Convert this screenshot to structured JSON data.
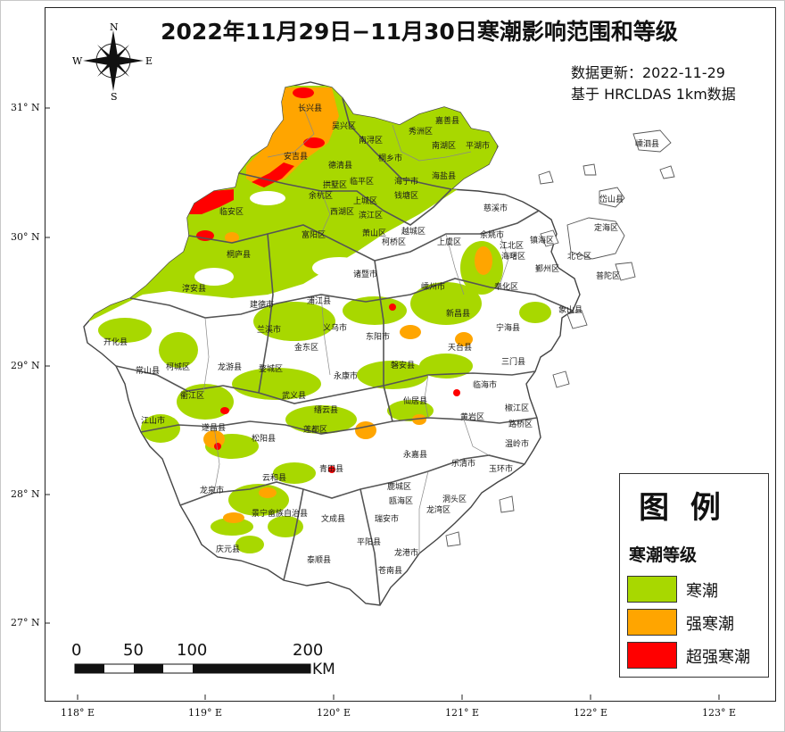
{
  "title": "2022年11月29日−11月30日寒潮影响范围和等级",
  "meta": {
    "update_label": "数据更新：2022-11-29",
    "source_label": "基于 HRCLDAS 1km数据"
  },
  "compass": {
    "n": "N",
    "s": "S",
    "e": "E",
    "w": "W"
  },
  "legend": {
    "title": "图 例",
    "subtitle": "寒潮等级",
    "items": [
      {
        "label": "寒潮",
        "color": "#a8d800"
      },
      {
        "label": "强寒潮",
        "color": "#ffa500"
      },
      {
        "label": "超强寒潮",
        "color": "#ff0000"
      }
    ]
  },
  "axes": {
    "lat_labels": [
      "31° N",
      "30° N",
      "29° N",
      "28° N",
      "27° N"
    ],
    "lon_labels": [
      "118° E",
      "119° E",
      "120° E",
      "121° E",
      "122° E",
      "123° E"
    ]
  },
  "scale_bar": {
    "ticks": [
      "0",
      "50",
      "100",
      "200"
    ],
    "unit": "KM"
  },
  "places": [
    "长兴县",
    "吴兴区",
    "南浔区",
    "秀洲区",
    "嘉善县",
    "南湖区",
    "平湖市",
    "桐乡市",
    "海盐县",
    "安吉县",
    "德清县",
    "临平区",
    "拱墅区",
    "海宁市",
    "余杭区",
    "上城区",
    "钱塘区",
    "西湖区",
    "滨江区",
    "临安区",
    "萧山区",
    "柯桥区",
    "越城区",
    "上虞区",
    "慈溪市",
    "余姚市",
    "江北区",
    "镇海区",
    "海曙区",
    "北仑区",
    "鄞州区",
    "定海区",
    "普陀区",
    "嵊泗县",
    "岱山县",
    "富阳区",
    "桐庐县",
    "诸暨市",
    "嵊州市",
    "奉化区",
    "淳安县",
    "建德市",
    "浦江县",
    "新昌县",
    "宁海县",
    "象山县",
    "开化县",
    "兰溪市",
    "义乌市",
    "东阳市",
    "天台县",
    "三门县",
    "常山县",
    "柯城区",
    "龙游县",
    "婺城区",
    "金东区",
    "永康市",
    "磐安县",
    "临海市",
    "衢江区",
    "武义县",
    "仙居县",
    "江山市",
    "遂昌县",
    "缙云县",
    "椒江区",
    "黄岩区",
    "路桥区",
    "松阳县",
    "莲都区",
    "温岭市",
    "永嘉县",
    "乐清市",
    "玉环市",
    "云和县",
    "青田县",
    "龙泉市",
    "鹿城区",
    "瓯海区",
    "洞头区",
    "龙湾区",
    "景宁畲族自治县",
    "文成县",
    "瑞安市",
    "平阳县",
    "庆元县",
    "泰顺县",
    "龙港市",
    "苍南县"
  ]
}
